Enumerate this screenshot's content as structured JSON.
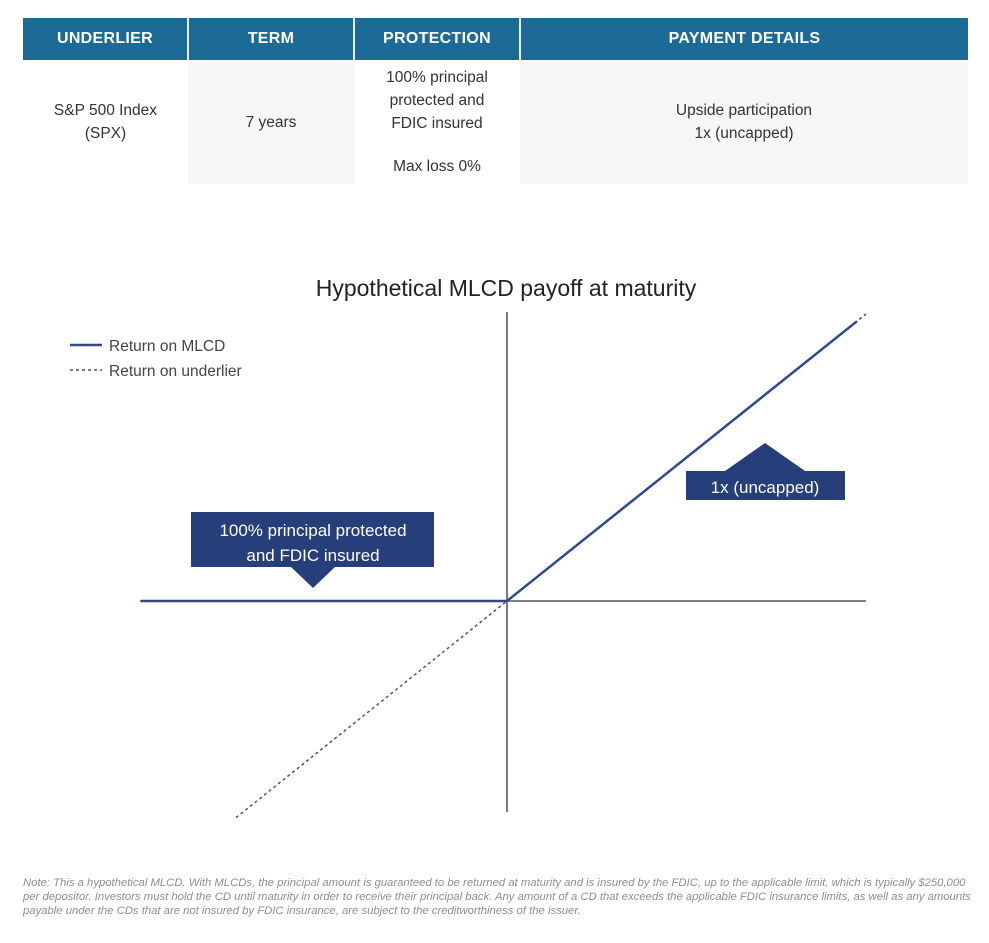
{
  "table": {
    "headers": [
      "UNDERLIER",
      "TERM",
      "PROTECTION",
      "PAYMENT DETAILS"
    ],
    "row": {
      "underlier": [
        "S&P 500 Index",
        "(SPX)"
      ],
      "term": "7 years",
      "protection": [
        "100% principal",
        "protected and",
        "FDIC insured",
        "Max loss 0%"
      ],
      "payment": [
        "Upside participation",
        "1x (uncapped)"
      ]
    }
  },
  "chart_data": {
    "type": "line",
    "title": "Hypothetical MLCD payoff at maturity",
    "xlim": [
      -1.02,
      1.0
    ],
    "ylim": [
      -0.73,
      1.0
    ],
    "grid": false,
    "legend_placement": "top-left",
    "series": [
      {
        "name": "Return on MLCD",
        "style": "solid",
        "color": "#2f4a8c",
        "x": [
          -1.02,
          0,
          0.975
        ],
        "y": [
          0,
          0,
          0.975
        ]
      },
      {
        "name": "Return on underlier",
        "style": "dashed",
        "color": "#555555",
        "x": [
          -0.755,
          1.0
        ],
        "y": [
          -0.755,
          1.0
        ]
      }
    ],
    "annotations": [
      {
        "text": "1x (uncapped)",
        "pointer": "up"
      },
      {
        "text": [
          "100% principal protected",
          "and FDIC insured"
        ],
        "pointer": "down"
      }
    ],
    "annotation_color": "#263f7a"
  },
  "note": "Note: This a hypothetical MLCD. With MLCDs, the principal amount is guaranteed to be returned at maturity and is insured by the FDIC, up to the applicable limit, which is typically $250,000 per depositor. Investors must hold the CD until maturity in order to receive their principal back. Any amount of a CD that exceeds the applicable FDIC insurance limits, as well as any amounts payable under the CDs that are not insured by FDIC insurance, are subject to the creditworthiness of the issuer."
}
